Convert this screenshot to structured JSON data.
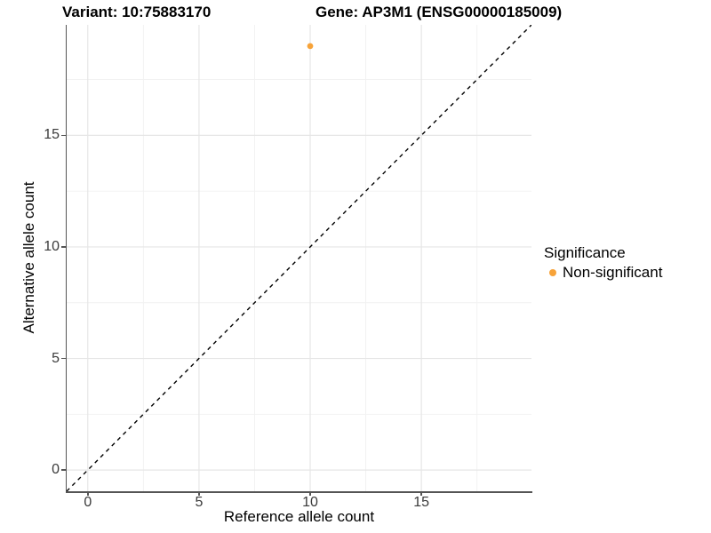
{
  "titles": {
    "left": "Variant: 10:75883170",
    "right": "Gene: AP3M1 (ENSG00000185009)"
  },
  "axes": {
    "x": {
      "label": "Reference allele count"
    },
    "y": {
      "label": "Alternative allele count"
    }
  },
  "legend": {
    "title": "Significance",
    "items": [
      {
        "label": "Non-significant",
        "color": "#F7A339"
      }
    ]
  },
  "colors": {
    "point": "#F7A339",
    "grid_major": "#E6E6E6",
    "grid_minor": "#F1F1F1",
    "axis_line": "#555555",
    "reference_line": "#000000"
  },
  "chart_data": {
    "type": "scatter",
    "title": "Variant: 10:75883170   Gene: AP3M1 (ENSG00000185009)",
    "xlabel": "Reference allele count",
    "ylabel": "Alternative allele count",
    "xlim": [
      -0.95,
      19.95
    ],
    "ylim": [
      -0.95,
      19.95
    ],
    "x_ticks": [
      0,
      5,
      10,
      15
    ],
    "y_ticks": [
      0,
      5,
      10,
      15
    ],
    "x_minor_ticks": [
      2.5,
      7.5,
      12.5,
      17.5
    ],
    "y_minor_ticks": [
      2.5,
      7.5,
      12.5,
      17.5
    ],
    "grid": true,
    "legend_position": "right",
    "series": [
      {
        "name": "Non-significant",
        "color": "#F7A339",
        "points": [
          {
            "x": 10,
            "y": 19
          }
        ]
      }
    ],
    "reference_line": {
      "type": "identity",
      "slope": 1,
      "intercept": 0,
      "style": "dashed",
      "color": "#000000"
    }
  }
}
